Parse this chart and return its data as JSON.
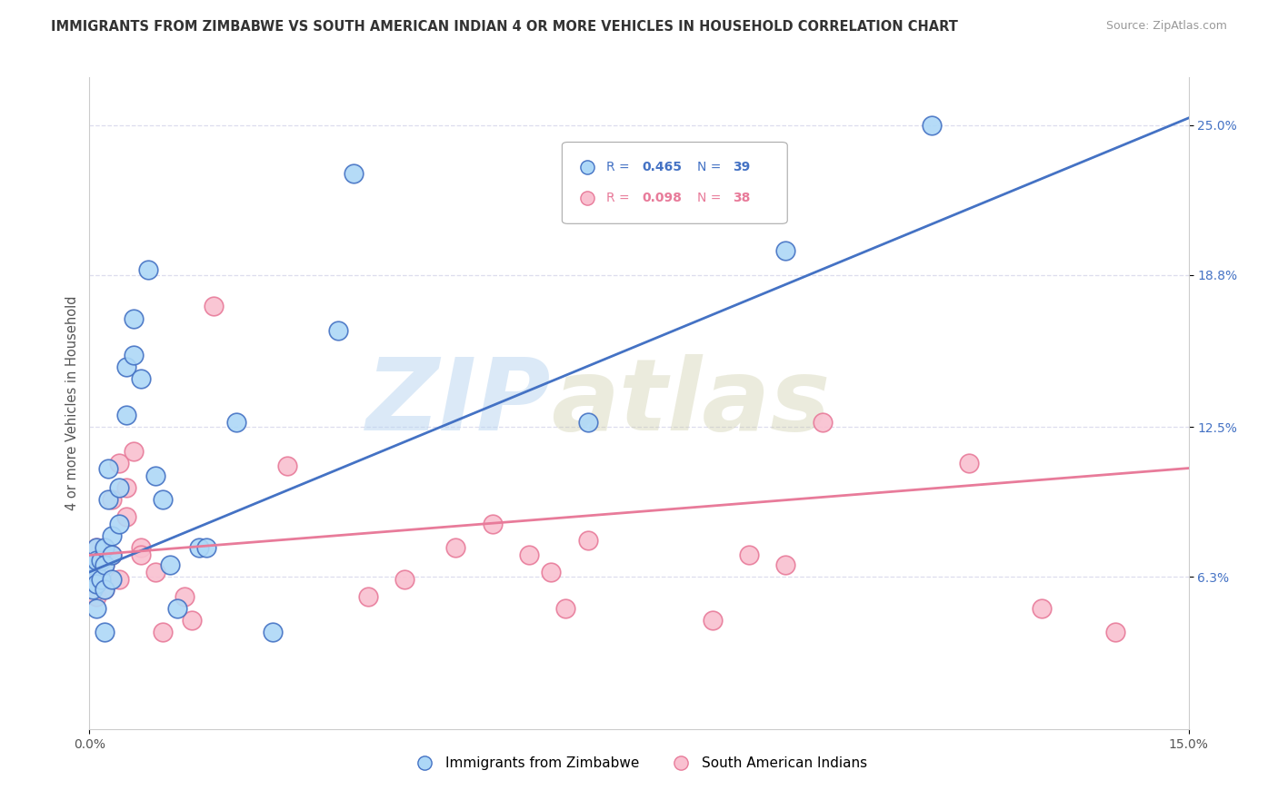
{
  "title": "IMMIGRANTS FROM ZIMBABWE VS SOUTH AMERICAN INDIAN 4 OR MORE VEHICLES IN HOUSEHOLD CORRELATION CHART",
  "source": "Source: ZipAtlas.com",
  "ylabel_label": "4 or more Vehicles in Household",
  "xmin": 0.0,
  "xmax": 0.15,
  "ymin": 0.0,
  "ymax": 0.27,
  "blue_color": "#ADD8F7",
  "pink_color": "#F9C0D0",
  "line_blue": "#4472C4",
  "line_pink": "#E87B9A",
  "legend_label_blue": "Immigrants from Zimbabwe",
  "legend_label_pink": "South American Indians",
  "blue_x": [
    0.0005,
    0.0005,
    0.0008,
    0.001,
    0.001,
    0.001,
    0.001,
    0.0015,
    0.0015,
    0.002,
    0.002,
    0.002,
    0.002,
    0.0025,
    0.0025,
    0.003,
    0.003,
    0.003,
    0.004,
    0.004,
    0.005,
    0.005,
    0.006,
    0.006,
    0.007,
    0.008,
    0.009,
    0.01,
    0.011,
    0.012,
    0.015,
    0.016,
    0.02,
    0.025,
    0.034,
    0.036,
    0.068,
    0.095,
    0.115
  ],
  "blue_y": [
    0.068,
    0.058,
    0.065,
    0.075,
    0.07,
    0.06,
    0.05,
    0.07,
    0.062,
    0.075,
    0.068,
    0.058,
    0.04,
    0.108,
    0.095,
    0.08,
    0.072,
    0.062,
    0.1,
    0.085,
    0.15,
    0.13,
    0.17,
    0.155,
    0.145,
    0.19,
    0.105,
    0.095,
    0.068,
    0.05,
    0.075,
    0.075,
    0.127,
    0.04,
    0.165,
    0.23,
    0.127,
    0.198,
    0.25
  ],
  "pink_x": [
    0.0005,
    0.0008,
    0.001,
    0.001,
    0.0015,
    0.002,
    0.002,
    0.002,
    0.003,
    0.003,
    0.004,
    0.004,
    0.005,
    0.005,
    0.006,
    0.007,
    0.007,
    0.009,
    0.01,
    0.013,
    0.014,
    0.017,
    0.027,
    0.038,
    0.043,
    0.05,
    0.055,
    0.06,
    0.063,
    0.065,
    0.068,
    0.085,
    0.09,
    0.095,
    0.1,
    0.12,
    0.13,
    0.14
  ],
  "pink_y": [
    0.068,
    0.062,
    0.075,
    0.055,
    0.07,
    0.075,
    0.068,
    0.058,
    0.095,
    0.072,
    0.11,
    0.062,
    0.1,
    0.088,
    0.115,
    0.075,
    0.072,
    0.065,
    0.04,
    0.055,
    0.045,
    0.175,
    0.109,
    0.055,
    0.062,
    0.075,
    0.085,
    0.072,
    0.065,
    0.05,
    0.078,
    0.045,
    0.072,
    0.068,
    0.127,
    0.11,
    0.05,
    0.04
  ],
  "blue_line_x0": 0.0,
  "blue_line_y0": 0.065,
  "blue_line_x1": 0.15,
  "blue_line_y1": 0.253,
  "pink_line_x0": 0.0,
  "pink_line_y0": 0.072,
  "pink_line_x1": 0.15,
  "pink_line_y1": 0.108,
  "ytick_vals": [
    0.063,
    0.125,
    0.188,
    0.25
  ],
  "ytick_labels": [
    "6.3%",
    "12.5%",
    "18.8%",
    "25.0%"
  ],
  "xtick_vals": [
    0.0,
    0.15
  ],
  "xtick_labels": [
    "0.0%",
    "15.0%"
  ],
  "watermark_zip": "ZIP",
  "watermark_atlas": "atlas",
  "background_color": "#FFFFFF",
  "grid_color": "#DDDDEE"
}
